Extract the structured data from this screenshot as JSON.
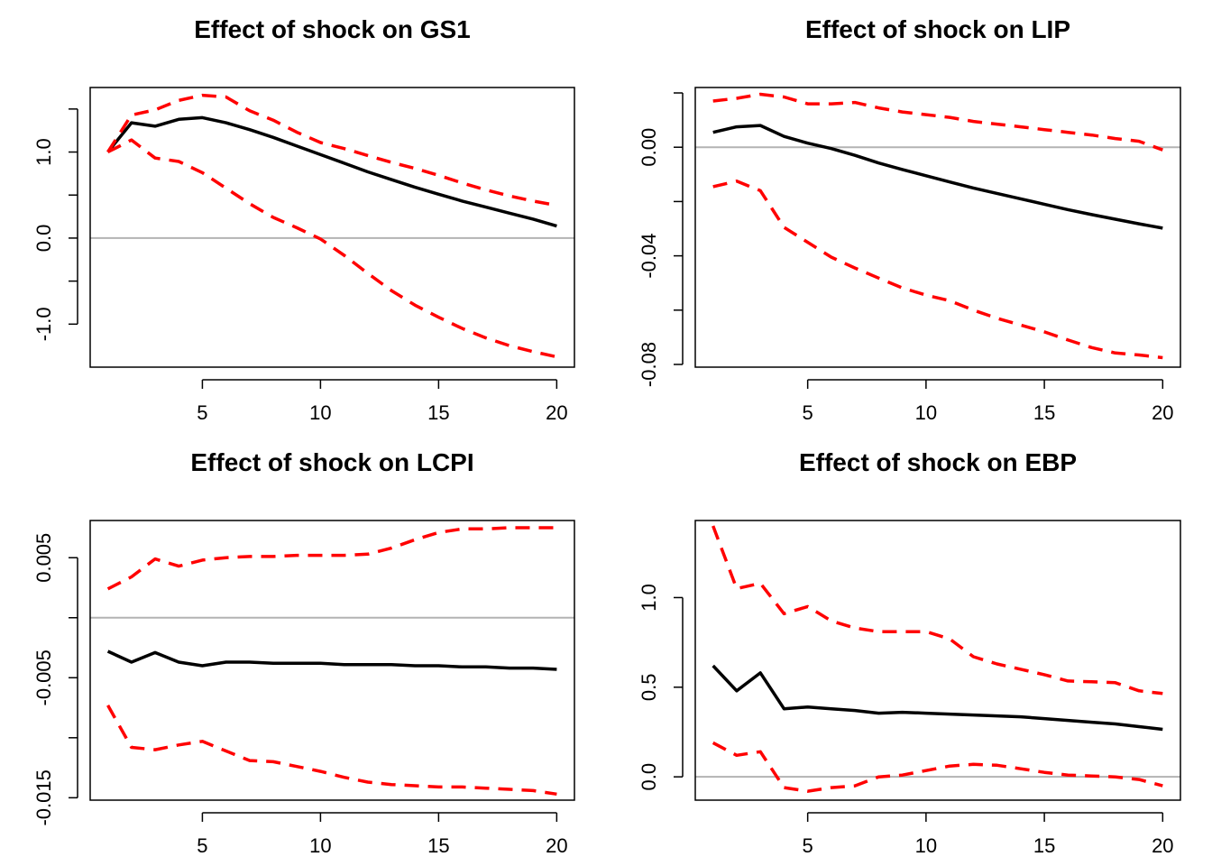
{
  "chart_data": [
    {
      "type": "line",
      "title": "Effect of shock on GS1",
      "x": [
        1,
        2,
        3,
        4,
        5,
        6,
        7,
        8,
        9,
        10,
        11,
        12,
        13,
        14,
        15,
        16,
        17,
        18,
        19,
        20
      ],
      "ylim": [
        -1.5,
        1.75
      ],
      "xticks": [
        5,
        10,
        15,
        20
      ],
      "yticks": [
        -1.0,
        0.0,
        1.0
      ],
      "ytick_labels": [
        "-1.0",
        "0.0",
        "1.0"
      ],
      "yticks_minor": [
        -0.5,
        0.5,
        1.5
      ],
      "reference_line": 0,
      "series": [
        {
          "role": "estimate",
          "color": "#000000",
          "style": "solid",
          "values": [
            1.0,
            1.34,
            1.3,
            1.38,
            1.4,
            1.34,
            1.26,
            1.17,
            1.07,
            0.97,
            0.87,
            0.77,
            0.68,
            0.59,
            0.51,
            0.43,
            0.36,
            0.29,
            0.22,
            0.14
          ]
        },
        {
          "role": "upper",
          "color": "#ff0000",
          "style": "dashed",
          "values": [
            1.0,
            1.43,
            1.49,
            1.6,
            1.66,
            1.64,
            1.48,
            1.37,
            1.23,
            1.11,
            1.04,
            0.96,
            0.88,
            0.81,
            0.73,
            0.64,
            0.56,
            0.49,
            0.43,
            0.38
          ]
        },
        {
          "role": "lower",
          "color": "#ff0000",
          "style": "dashed",
          "values": [
            1.0,
            1.14,
            0.93,
            0.89,
            0.76,
            0.58,
            0.4,
            0.24,
            0.12,
            -0.01,
            -0.2,
            -0.41,
            -0.61,
            -0.78,
            -0.92,
            -1.05,
            -1.16,
            -1.25,
            -1.32,
            -1.38
          ]
        }
      ]
    },
    {
      "type": "line",
      "title": "Effect of shock on LIP",
      "x": [
        1,
        2,
        3,
        4,
        5,
        6,
        7,
        8,
        9,
        10,
        11,
        12,
        13,
        14,
        15,
        16,
        17,
        18,
        19,
        20
      ],
      "ylim": [
        -0.081,
        0.022
      ],
      "xticks": [
        5,
        10,
        15,
        20
      ],
      "yticks": [
        -0.08,
        -0.04,
        0.0
      ],
      "ytick_labels": [
        "-0.08",
        "-0.04",
        "0.00"
      ],
      "yticks_minor": [
        -0.06,
        -0.02,
        0.02
      ],
      "reference_line": 0,
      "series": [
        {
          "role": "estimate",
          "color": "#000000",
          "style": "solid",
          "values": [
            0.0055,
            0.0075,
            0.008,
            0.004,
            0.0015,
            -0.0005,
            -0.003,
            -0.0058,
            -0.0082,
            -0.0105,
            -0.0128,
            -0.015,
            -0.017,
            -0.019,
            -0.021,
            -0.023,
            -0.0248,
            -0.0265,
            -0.0282,
            -0.0298
          ]
        },
        {
          "role": "upper",
          "color": "#ff0000",
          "style": "dashed",
          "values": [
            0.017,
            0.018,
            0.0195,
            0.0185,
            0.016,
            0.016,
            0.0165,
            0.0145,
            0.013,
            0.012,
            0.011,
            0.0095,
            0.0085,
            0.0075,
            0.0065,
            0.0055,
            0.0045,
            0.0032,
            0.0022,
            -0.001
          ]
        },
        {
          "role": "lower",
          "color": "#ff0000",
          "style": "dashed",
          "values": [
            -0.0145,
            -0.0125,
            -0.016,
            -0.0295,
            -0.035,
            -0.0405,
            -0.0445,
            -0.0482,
            -0.0518,
            -0.0545,
            -0.0565,
            -0.06,
            -0.063,
            -0.0655,
            -0.068,
            -0.071,
            -0.0738,
            -0.0758,
            -0.0765,
            -0.0775
          ]
        }
      ]
    },
    {
      "type": "line",
      "title": "Effect of shock on LCPI",
      "x": [
        1,
        2,
        3,
        4,
        5,
        6,
        7,
        8,
        9,
        10,
        11,
        12,
        13,
        14,
        15,
        16,
        17,
        18,
        19,
        20
      ],
      "ylim": [
        -0.0152,
        0.0081
      ],
      "xticks": [
        5,
        10,
        15,
        20
      ],
      "yticks": [
        -0.015,
        -0.005,
        0.005
      ],
      "ytick_labels": [
        "-0.015",
        "-0.005",
        "0.005"
      ],
      "yticks_minor": [
        -0.01,
        0.0
      ],
      "reference_line": 0,
      "series": [
        {
          "role": "estimate",
          "color": "#000000",
          "style": "solid",
          "values": [
            -0.0028,
            -0.0037,
            -0.0029,
            -0.0037,
            -0.004,
            -0.0037,
            -0.0037,
            -0.0038,
            -0.0038,
            -0.0038,
            -0.0039,
            -0.0039,
            -0.0039,
            -0.004,
            -0.004,
            -0.0041,
            -0.0041,
            -0.0042,
            -0.0042,
            -0.0043
          ]
        },
        {
          "role": "upper",
          "color": "#ff0000",
          "style": "dashed",
          "values": [
            0.0024,
            0.0034,
            0.0049,
            0.0043,
            0.0048,
            0.005,
            0.0051,
            0.0051,
            0.0052,
            0.0052,
            0.0052,
            0.0053,
            0.0058,
            0.0065,
            0.0071,
            0.0074,
            0.0074,
            0.0075,
            0.0075,
            0.0075
          ]
        },
        {
          "role": "lower",
          "color": "#ff0000",
          "style": "dashed",
          "values": [
            -0.0073,
            -0.0108,
            -0.011,
            -0.0106,
            -0.0103,
            -0.0111,
            -0.0119,
            -0.012,
            -0.0124,
            -0.0128,
            -0.0133,
            -0.0137,
            -0.0139,
            -0.014,
            -0.0141,
            -0.0141,
            -0.0142,
            -0.0143,
            -0.0144,
            -0.0147
          ]
        }
      ]
    },
    {
      "type": "line",
      "title": "Effect of shock on EBP",
      "x": [
        1,
        2,
        3,
        4,
        5,
        6,
        7,
        8,
        9,
        10,
        11,
        12,
        13,
        14,
        15,
        16,
        17,
        18,
        19,
        20
      ],
      "ylim": [
        -0.13,
        1.43
      ],
      "xticks": [
        5,
        10,
        15,
        20
      ],
      "yticks": [
        0.0,
        0.5,
        1.0
      ],
      "ytick_labels": [
        "0.0",
        "0.5",
        "1.0"
      ],
      "yticks_minor": [],
      "reference_line": 0,
      "series": [
        {
          "role": "estimate",
          "color": "#000000",
          "style": "solid",
          "values": [
            0.62,
            0.48,
            0.58,
            0.38,
            0.39,
            0.38,
            0.37,
            0.355,
            0.36,
            0.355,
            0.35,
            0.345,
            0.34,
            0.335,
            0.325,
            0.315,
            0.305,
            0.295,
            0.28,
            0.265
          ]
        },
        {
          "role": "upper",
          "color": "#ff0000",
          "style": "dashed",
          "values": [
            1.4,
            1.05,
            1.08,
            0.91,
            0.95,
            0.87,
            0.83,
            0.81,
            0.81,
            0.81,
            0.77,
            0.67,
            0.63,
            0.6,
            0.57,
            0.535,
            0.53,
            0.525,
            0.48,
            0.465
          ]
        },
        {
          "role": "lower",
          "color": "#ff0000",
          "style": "dashed",
          "values": [
            0.19,
            0.12,
            0.14,
            -0.06,
            -0.08,
            -0.06,
            -0.05,
            0.0,
            0.01,
            0.035,
            0.06,
            0.07,
            0.065,
            0.045,
            0.025,
            0.01,
            0.005,
            0.0,
            -0.015,
            -0.05
          ]
        }
      ]
    }
  ]
}
